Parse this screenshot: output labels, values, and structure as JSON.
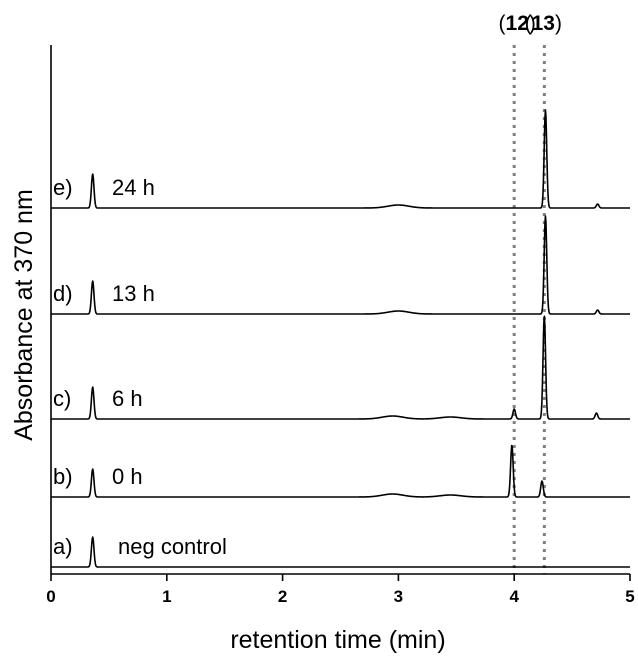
{
  "chart_data": {
    "type": "line",
    "title": "",
    "xlabel": "retention time (min)",
    "ylabel": "Absorbance at 370 nm",
    "xlim": [
      0,
      5
    ],
    "x_ticks": [
      "0",
      "1",
      "2",
      "3",
      "4",
      "5"
    ],
    "grid": false,
    "legend": "none",
    "markers": [
      {
        "compound": "12",
        "x": 4.0
      },
      {
        "compound": "13",
        "x": 4.26
      }
    ],
    "series": [
      {
        "letter": "a)",
        "label": "neg control",
        "peaks": [
          {
            "x": 0.36,
            "height": 30
          }
        ],
        "bumps": []
      },
      {
        "letter": "b)",
        "label": "0 h",
        "peaks": [
          {
            "x": 0.36,
            "height": 28
          },
          {
            "x": 3.98,
            "height": 52
          },
          {
            "x": 4.24,
            "height": 16
          }
        ],
        "bumps": [
          {
            "x": 2.95,
            "height": 3
          },
          {
            "x": 3.45,
            "height": 2
          }
        ]
      },
      {
        "letter": "c)",
        "label": "6 h",
        "peaks": [
          {
            "x": 0.36,
            "height": 32
          },
          {
            "x": 4.0,
            "height": 10
          },
          {
            "x": 4.26,
            "height": 103
          },
          {
            "x": 4.71,
            "height": 6
          }
        ],
        "bumps": [
          {
            "x": 2.95,
            "height": 3
          },
          {
            "x": 3.45,
            "height": 2
          }
        ]
      },
      {
        "letter": "d)",
        "label": "13 h",
        "peaks": [
          {
            "x": 0.36,
            "height": 33
          },
          {
            "x": 4.27,
            "height": 98
          },
          {
            "x": 4.72,
            "height": 4
          }
        ],
        "bumps": [
          {
            "x": 3.0,
            "height": 3
          }
        ]
      },
      {
        "letter": "e)",
        "label": "24 h",
        "peaks": [
          {
            "x": 0.36,
            "height": 34
          },
          {
            "x": 4.27,
            "height": 98
          },
          {
            "x": 4.72,
            "height": 4
          }
        ],
        "bumps": [
          {
            "x": 3.0,
            "height": 3
          }
        ]
      }
    ]
  }
}
